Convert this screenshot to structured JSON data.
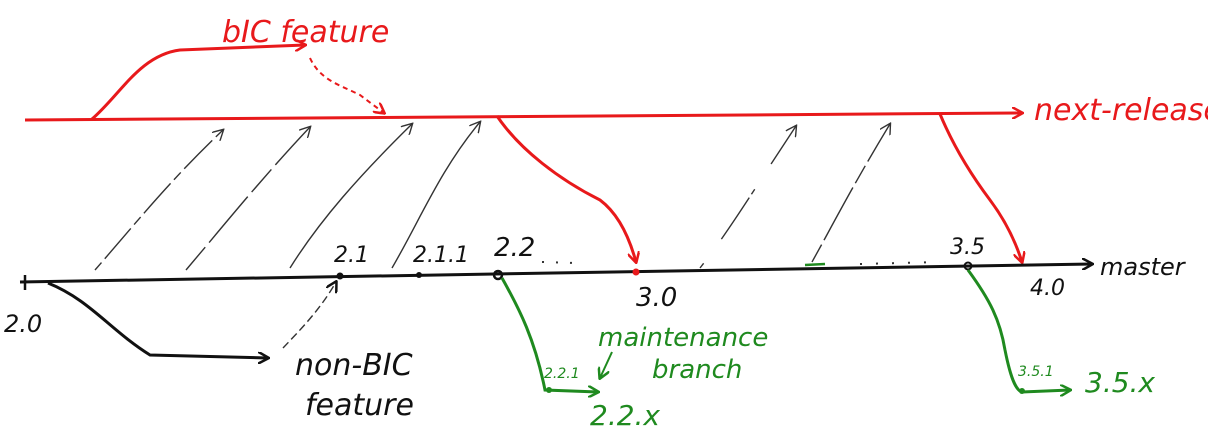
{
  "colors": {
    "release": "#e8191b",
    "master": "#111111",
    "maintenance": "#1f8a1f",
    "background": "#ffffff"
  },
  "labels": {
    "bic_feature": "bIC feature",
    "next_release": "next-release",
    "master": "master",
    "non_bic_line1": "non-BIC",
    "non_bic_line2": "feature",
    "maintenance_line1": "maintenance",
    "maintenance_line2": "branch",
    "v2_0": "2.0",
    "v2_1": "2.1",
    "v2_1_1": "2.1.1",
    "v2_2": "2.2",
    "v3_0": "3.0",
    "v3_5": "3.5",
    "v4_0": "4.0",
    "v2_2_1": "2.2.1",
    "v2_2_x": "2.2.x",
    "v3_5_1": "3.5.1",
    "v3_5_x": "3.5.x"
  }
}
